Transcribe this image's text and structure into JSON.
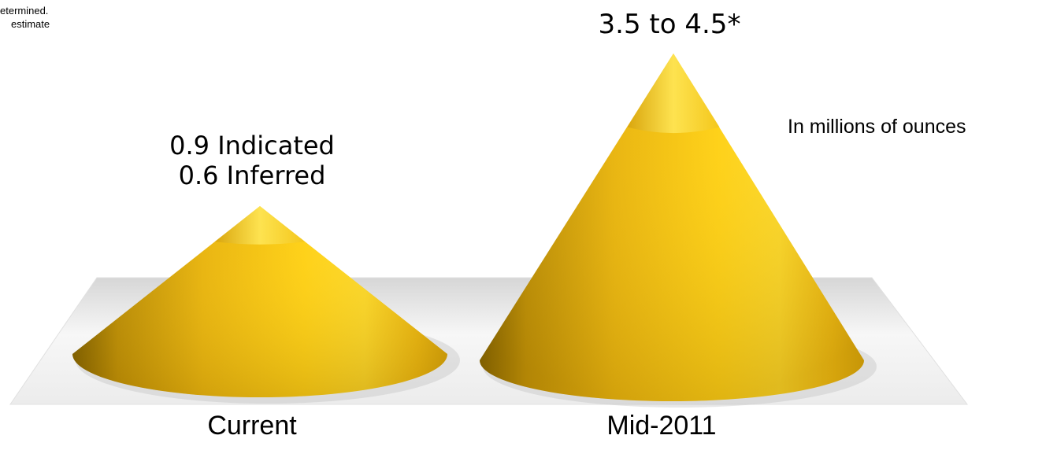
{
  "notes": {
    "line1": "etermined.",
    "line2": "estimate"
  },
  "unit_label": "In millions of ounces",
  "chart_data": {
    "type": "bar",
    "shape": "cone",
    "title": "",
    "xlabel": "",
    "ylabel": "",
    "grid": false,
    "base_color": "#E8B410",
    "highlight_color": "#FFF06A",
    "shadow_color": "#5A4300",
    "categories": [
      "Current",
      "Mid-2011"
    ],
    "data_labels": [
      [
        "0.9 Indicated",
        "0.6 Inferred"
      ],
      [
        "3.5 to 4.5*"
      ]
    ]
  }
}
